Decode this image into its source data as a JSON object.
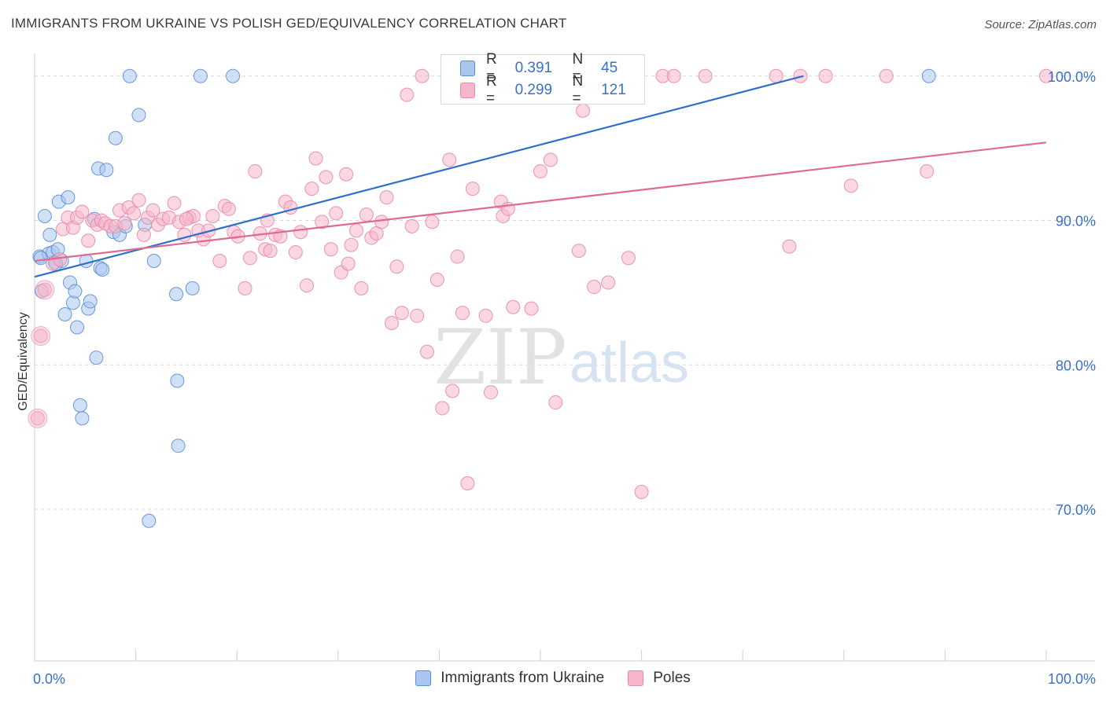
{
  "title": "IMMIGRANTS FROM UKRAINE VS POLISH GED/EQUIVALENCY CORRELATION CHART",
  "source": "Source: ZipAtlas.com",
  "watermark": {
    "zip": "ZIP",
    "atlas": "atlas"
  },
  "colors": {
    "blue_fill": "#a9c6ee",
    "blue_stroke": "#5b8fd6",
    "blue_line": "#2f6fcb",
    "pink_fill": "#f6b6ca",
    "pink_stroke": "#e88aa8",
    "pink_line": "#e06a93",
    "grid": "#d8d8d8",
    "tick_label": "#3a70c8"
  },
  "legend": {
    "r_label": "R =",
    "n_label": "N =",
    "rows": [
      {
        "name": "Immigrants from Ukraine",
        "r": "0.391",
        "n": "45",
        "color": "#a9c6ee",
        "stroke": "#5b8fd6"
      },
      {
        "name": "Poles",
        "r": "0.299",
        "n": "121",
        "color": "#f6b6ca",
        "stroke": "#e88aa8"
      }
    ]
  },
  "chart_data": {
    "type": "scatter",
    "title": "IMMIGRANTS FROM UKRAINE VS POLISH GED/EQUIVALENCY CORRELATION CHART",
    "xlabel": "",
    "ylabel": "GED/Equivalency",
    "xlim": [
      0,
      100
    ],
    "ylim": [
      59.5,
      102
    ],
    "x_tick_labels": [
      "0.0%",
      "100.0%"
    ],
    "y_ticks": [
      70,
      80,
      90,
      100
    ],
    "y_tick_labels": [
      "70.0%",
      "80.0%",
      "90.0%",
      "100.0%"
    ],
    "grid": true,
    "series": [
      {
        "name": "Immigrants from Ukraine",
        "r": 0.391,
        "n": 45,
        "trend": {
          "x": [
            0,
            76
          ],
          "y": [
            86.1,
            100.0
          ]
        },
        "points": [
          {
            "x": 0.5,
            "y": 87.5
          },
          {
            "x": 0.7,
            "y": 85.1
          },
          {
            "x": 1.0,
            "y": 90.3
          },
          {
            "x": 1.4,
            "y": 87.7
          },
          {
            "x": 1.5,
            "y": 89.0
          },
          {
            "x": 1.8,
            "y": 87.8
          },
          {
            "x": 2.0,
            "y": 87.1
          },
          {
            "x": 2.3,
            "y": 88.0
          },
          {
            "x": 2.4,
            "y": 91.3
          },
          {
            "x": 2.7,
            "y": 87.2
          },
          {
            "x": 3.0,
            "y": 83.5
          },
          {
            "x": 3.3,
            "y": 91.6
          },
          {
            "x": 3.5,
            "y": 85.7
          },
          {
            "x": 3.8,
            "y": 84.3
          },
          {
            "x": 4.0,
            "y": 85.1
          },
          {
            "x": 4.2,
            "y": 82.6
          },
          {
            "x": 4.5,
            "y": 77.2
          },
          {
            "x": 4.7,
            "y": 76.3
          },
          {
            "x": 5.1,
            "y": 87.2
          },
          {
            "x": 5.3,
            "y": 83.9
          },
          {
            "x": 5.5,
            "y": 84.4
          },
          {
            "x": 5.9,
            "y": 90.1
          },
          {
            "x": 6.1,
            "y": 80.5
          },
          {
            "x": 6.3,
            "y": 93.6
          },
          {
            "x": 6.5,
            "y": 86.7
          },
          {
            "x": 6.7,
            "y": 86.6
          },
          {
            "x": 7.1,
            "y": 93.5
          },
          {
            "x": 7.8,
            "y": 89.2
          },
          {
            "x": 8.0,
            "y": 95.7
          },
          {
            "x": 8.4,
            "y": 89.0
          },
          {
            "x": 9.0,
            "y": 89.6
          },
          {
            "x": 9.4,
            "y": 100.0
          },
          {
            "x": 10.3,
            "y": 97.3
          },
          {
            "x": 10.9,
            "y": 89.7
          },
          {
            "x": 11.3,
            "y": 69.2
          },
          {
            "x": 11.8,
            "y": 87.2
          },
          {
            "x": 14.0,
            "y": 84.9
          },
          {
            "x": 14.1,
            "y": 78.9
          },
          {
            "x": 14.2,
            "y": 74.4
          },
          {
            "x": 15.6,
            "y": 85.3
          },
          {
            "x": 16.4,
            "y": 100.0
          },
          {
            "x": 19.6,
            "y": 100.0
          },
          {
            "x": 88.4,
            "y": 100.0
          },
          {
            "x": 0.6,
            "y": 87.4
          },
          {
            "x": 2.1,
            "y": 87.0
          }
        ]
      },
      {
        "name": "Poles",
        "r": 0.299,
        "n": 121,
        "trend": {
          "x": [
            0,
            100
          ],
          "y": [
            87.2,
            95.4
          ]
        },
        "points": [
          {
            "x": 0.3,
            "y": 76.3
          },
          {
            "x": 0.6,
            "y": 82.0
          },
          {
            "x": 1.0,
            "y": 85.2
          },
          {
            "x": 1.8,
            "y": 87.0
          },
          {
            "x": 2.5,
            "y": 87.3
          },
          {
            "x": 2.8,
            "y": 89.4
          },
          {
            "x": 3.3,
            "y": 90.2
          },
          {
            "x": 3.8,
            "y": 89.5
          },
          {
            "x": 4.2,
            "y": 90.2
          },
          {
            "x": 4.7,
            "y": 90.6
          },
          {
            "x": 5.3,
            "y": 88.6
          },
          {
            "x": 5.7,
            "y": 90.0
          },
          {
            "x": 6.2,
            "y": 89.7
          },
          {
            "x": 6.6,
            "y": 90.0
          },
          {
            "x": 7.0,
            "y": 89.8
          },
          {
            "x": 7.5,
            "y": 89.6
          },
          {
            "x": 8.0,
            "y": 89.6
          },
          {
            "x": 8.4,
            "y": 90.7
          },
          {
            "x": 8.9,
            "y": 89.8
          },
          {
            "x": 9.3,
            "y": 90.9
          },
          {
            "x": 9.8,
            "y": 90.5
          },
          {
            "x": 10.3,
            "y": 91.4
          },
          {
            "x": 10.8,
            "y": 89.0
          },
          {
            "x": 11.2,
            "y": 90.2
          },
          {
            "x": 11.7,
            "y": 90.7
          },
          {
            "x": 12.2,
            "y": 89.7
          },
          {
            "x": 12.7,
            "y": 90.1
          },
          {
            "x": 13.3,
            "y": 90.2
          },
          {
            "x": 13.8,
            "y": 91.2
          },
          {
            "x": 14.3,
            "y": 89.9
          },
          {
            "x": 14.8,
            "y": 89.0
          },
          {
            "x": 15.3,
            "y": 90.2
          },
          {
            "x": 15.7,
            "y": 90.3
          },
          {
            "x": 16.2,
            "y": 89.3
          },
          {
            "x": 16.7,
            "y": 88.7
          },
          {
            "x": 17.2,
            "y": 89.3
          },
          {
            "x": 17.6,
            "y": 90.3
          },
          {
            "x": 18.3,
            "y": 87.2
          },
          {
            "x": 18.8,
            "y": 91.0
          },
          {
            "x": 19.2,
            "y": 90.8
          },
          {
            "x": 19.7,
            "y": 89.2
          },
          {
            "x": 20.1,
            "y": 88.9
          },
          {
            "x": 20.8,
            "y": 85.3
          },
          {
            "x": 21.3,
            "y": 87.4
          },
          {
            "x": 21.8,
            "y": 93.4
          },
          {
            "x": 22.3,
            "y": 89.1
          },
          {
            "x": 22.8,
            "y": 88.0
          },
          {
            "x": 23.3,
            "y": 87.9
          },
          {
            "x": 23.8,
            "y": 89.0
          },
          {
            "x": 24.3,
            "y": 88.9
          },
          {
            "x": 24.8,
            "y": 91.3
          },
          {
            "x": 25.3,
            "y": 90.9
          },
          {
            "x": 25.8,
            "y": 87.8
          },
          {
            "x": 26.3,
            "y": 89.2
          },
          {
            "x": 26.9,
            "y": 85.5
          },
          {
            "x": 27.4,
            "y": 92.2
          },
          {
            "x": 27.8,
            "y": 94.3
          },
          {
            "x": 28.4,
            "y": 89.9
          },
          {
            "x": 28.8,
            "y": 93.0
          },
          {
            "x": 29.3,
            "y": 88.0
          },
          {
            "x": 29.8,
            "y": 90.5
          },
          {
            "x": 30.3,
            "y": 86.4
          },
          {
            "x": 30.8,
            "y": 93.2
          },
          {
            "x": 31.3,
            "y": 88.3
          },
          {
            "x": 31.8,
            "y": 89.3
          },
          {
            "x": 32.3,
            "y": 85.3
          },
          {
            "x": 32.8,
            "y": 90.4
          },
          {
            "x": 33.3,
            "y": 88.8
          },
          {
            "x": 33.8,
            "y": 89.1
          },
          {
            "x": 34.3,
            "y": 89.9
          },
          {
            "x": 34.8,
            "y": 91.6
          },
          {
            "x": 35.3,
            "y": 82.9
          },
          {
            "x": 35.8,
            "y": 86.8
          },
          {
            "x": 36.3,
            "y": 83.6
          },
          {
            "x": 36.8,
            "y": 98.7
          },
          {
            "x": 37.3,
            "y": 89.6
          },
          {
            "x": 37.8,
            "y": 83.4
          },
          {
            "x": 38.3,
            "y": 100.0
          },
          {
            "x": 38.8,
            "y": 80.9
          },
          {
            "x": 39.3,
            "y": 89.9
          },
          {
            "x": 39.8,
            "y": 85.9
          },
          {
            "x": 40.3,
            "y": 77.0
          },
          {
            "x": 41.0,
            "y": 94.2
          },
          {
            "x": 41.3,
            "y": 78.2
          },
          {
            "x": 41.8,
            "y": 87.5
          },
          {
            "x": 42.3,
            "y": 83.6
          },
          {
            "x": 42.8,
            "y": 71.8
          },
          {
            "x": 43.3,
            "y": 92.2
          },
          {
            "x": 44.6,
            "y": 83.4
          },
          {
            "x": 45.1,
            "y": 78.1
          },
          {
            "x": 46.1,
            "y": 91.3
          },
          {
            "x": 46.3,
            "y": 90.3
          },
          {
            "x": 46.8,
            "y": 90.8
          },
          {
            "x": 47.3,
            "y": 84.0
          },
          {
            "x": 48.0,
            "y": 100.0
          },
          {
            "x": 49.1,
            "y": 83.9
          },
          {
            "x": 50.0,
            "y": 93.4
          },
          {
            "x": 51.0,
            "y": 94.2
          },
          {
            "x": 51.5,
            "y": 77.4
          },
          {
            "x": 52.0,
            "y": 100.0
          },
          {
            "x": 53.8,
            "y": 87.9
          },
          {
            "x": 54.2,
            "y": 97.6
          },
          {
            "x": 55.3,
            "y": 85.4
          },
          {
            "x": 55.8,
            "y": 100.0
          },
          {
            "x": 56.7,
            "y": 85.7
          },
          {
            "x": 58.7,
            "y": 87.4
          },
          {
            "x": 60.0,
            "y": 71.2
          },
          {
            "x": 62.1,
            "y": 100.0
          },
          {
            "x": 63.2,
            "y": 100.0
          },
          {
            "x": 66.3,
            "y": 100.0
          },
          {
            "x": 73.3,
            "y": 100.0
          },
          {
            "x": 74.6,
            "y": 88.2
          },
          {
            "x": 75.7,
            "y": 100.0
          },
          {
            "x": 78.2,
            "y": 100.0
          },
          {
            "x": 80.7,
            "y": 92.4
          },
          {
            "x": 84.2,
            "y": 100.0
          },
          {
            "x": 88.2,
            "y": 93.4
          },
          {
            "x": 100.0,
            "y": 100.0
          },
          {
            "x": 15.0,
            "y": 90.1
          },
          {
            "x": 23.0,
            "y": 90.0
          },
          {
            "x": 31.0,
            "y": 87.0
          }
        ]
      }
    ]
  }
}
